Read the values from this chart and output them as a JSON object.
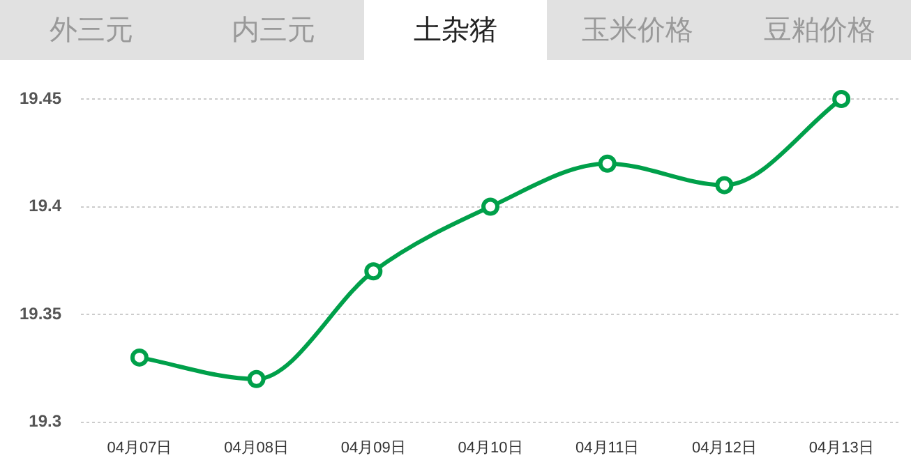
{
  "chart_data": {
    "type": "line",
    "title": "土杂猪",
    "annotations": [
      "外三元",
      "内三元",
      "玉米价格",
      "豆粕价格"
    ],
    "categories": [
      "04月07日",
      "04月08日",
      "04月09日",
      "04月10日",
      "04月11日",
      "04月12日",
      "04月13日"
    ],
    "series": [
      {
        "color": "#00a04a",
        "values": [
          19.33,
          19.32,
          19.37,
          19.4,
          19.42,
          19.41,
          19.45
        ]
      }
    ],
    "ylim": [
      19.3,
      19.45
    ],
    "yticks": [
      19.3,
      19.35,
      19.4,
      19.45
    ],
    "grid": "y",
    "legend": false,
    "marker": "circle",
    "line_style": "solid"
  }
}
